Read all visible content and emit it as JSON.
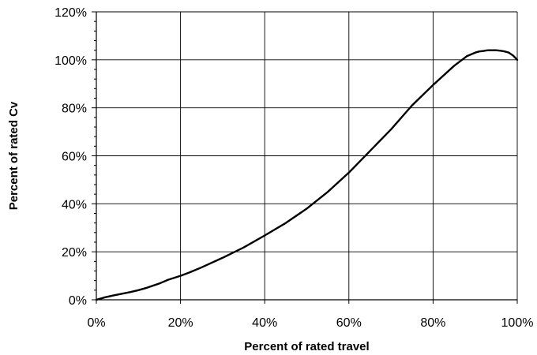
{
  "chart_data": {
    "type": "line",
    "title": "",
    "xlabel": "Percent of rated travel",
    "ylabel": "Percent of rated Cv",
    "xlim": [
      0,
      100
    ],
    "ylim": [
      0,
      120
    ],
    "x_ticks": [
      0,
      20,
      40,
      60,
      80,
      100
    ],
    "y_ticks": [
      0,
      20,
      40,
      60,
      80,
      100,
      120
    ],
    "x_tick_labels": [
      "0%",
      "20%",
      "40%",
      "60%",
      "80%",
      "100%"
    ],
    "y_tick_labels": [
      "0%",
      "20%",
      "40%",
      "60%",
      "80%",
      "100%",
      "120%"
    ],
    "grid": true,
    "legend": "none",
    "line_color": "#000000",
    "series": [
      {
        "x": [
          0,
          2,
          4,
          6,
          8,
          10,
          12,
          15,
          17,
          20,
          22,
          25,
          30,
          35,
          40,
          45,
          50,
          55,
          60,
          65,
          70,
          75,
          80,
          85,
          88,
          90,
          91,
          92,
          93,
          94,
          95,
          96,
          97,
          98,
          99,
          100
        ],
        "y": [
          0,
          1,
          1.8,
          2.5,
          3.2,
          4,
          5,
          6.8,
          8.3,
          10,
          11.3,
          13.5,
          17.5,
          21.8,
          26.8,
          32,
          38,
          45,
          53,
          62,
          71,
          81,
          89.5,
          97.5,
          101.5,
          103,
          103.5,
          103.7,
          104,
          104,
          104,
          103.8,
          103.5,
          103,
          101.8,
          100
        ]
      }
    ]
  }
}
